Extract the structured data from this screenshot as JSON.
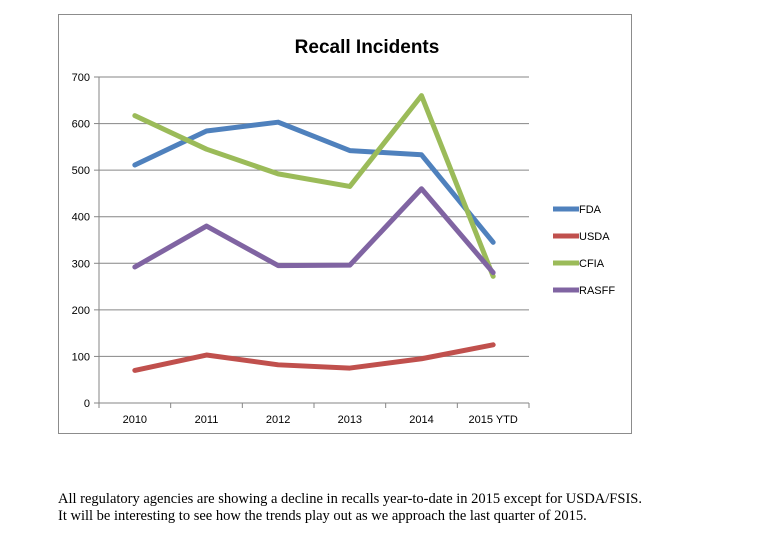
{
  "chart_data": {
    "type": "line",
    "title": "Recall Incidents",
    "xlabel": "",
    "ylabel": "",
    "categories": [
      "2010",
      "2011",
      "2012",
      "2013",
      "2014",
      "2015 YTD"
    ],
    "ylim": [
      0,
      700
    ],
    "yticks": [
      0,
      100,
      200,
      300,
      400,
      500,
      600,
      700
    ],
    "grid": true,
    "legend": "right",
    "series": [
      {
        "name": "FDA",
        "color": "#4f81bd",
        "values": [
          511,
          584,
          603,
          542,
          533,
          345
        ]
      },
      {
        "name": "USDA",
        "color": "#c0504d",
        "values": [
          70,
          103,
          82,
          75,
          95,
          125
        ]
      },
      {
        "name": "CFIA",
        "color": "#9bbb59",
        "values": [
          617,
          545,
          492,
          465,
          660,
          272
        ]
      },
      {
        "name": "RASFF",
        "color": "#8064a2",
        "values": [
          292,
          380,
          295,
          296,
          460,
          280
        ]
      }
    ]
  },
  "caption": {
    "line1": "All regulatory agencies are showing a decline in recalls year-to-date in 2015 except for USDA/FSIS.",
    "line2": "It will be interesting to see how the trends play out as we approach the last quarter of 2015."
  }
}
